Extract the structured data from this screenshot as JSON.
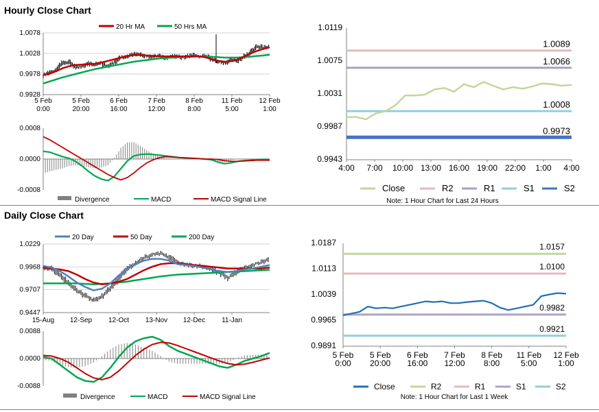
{
  "sections": {
    "hourly_title": "Hourly Close Chart",
    "daily_title": "Daily Close Chart"
  },
  "colors": {
    "price_black": "#000000",
    "ma_short_red": "#c00000",
    "ma_long_green": "#00a651",
    "ma_blue": "#4f81bd",
    "close_green": "#c3d69b",
    "close_blue": "#1f6fb2",
    "r2_pink": "#e6b9b8",
    "r1_purple": "#a5a0c4",
    "s1_teal": "#92cddc",
    "s2_blue": "#4472c4",
    "daily_r2": "#c3d69b",
    "daily_r1": "#e6b9b8",
    "daily_s1": "#b1a0c7",
    "daily_s2": "#92cddc",
    "divergence_gray": "#808080"
  },
  "chart_data": [
    {
      "id": "hourly_price",
      "type": "line",
      "x_ticks": [
        "5 Feb\n0:00",
        "5 Feb\n20:00",
        "6 Feb\n16:00",
        "7 Feb\n12:00",
        "8 Feb\n8:00",
        "11 Feb\n5:00",
        "12 Feb\n1:00"
      ],
      "y_ticks": [
        "1.0078",
        "1.0028",
        "0.9978",
        "0.9928"
      ],
      "ylim": [
        0.9928,
        1.0078
      ],
      "legend": [
        "20 Hr MA",
        "50 Hrs MA"
      ],
      "series": [
        {
          "name": "Price",
          "values": [
            0.9975,
            0.9982,
            0.9988,
            1.0005,
            1.0008,
            0.9994,
            0.9996,
            1.0003,
            1.0001,
            1.0004,
            0.9998,
            1.0006,
            1.0019,
            1.002,
            1.0026,
            1.0024,
            1.0022,
            1.0019,
            1.0023,
            1.0016,
            1.0022,
            1.002,
            1.0018,
            1.0024,
            1.0021,
            1.0023,
            1.0014,
            1.0008,
            1.0005,
            1.0012,
            1.001,
            1.002,
            1.003,
            1.0046,
            1.0042,
            1.0045
          ]
        },
        {
          "name": "20 Hr MA",
          "values": [
            0.9976,
            0.9979,
            0.9985,
            0.9992,
            0.9997,
            1.0,
            1.0001,
            1.0002,
            1.0003,
            1.0006,
            1.001,
            1.0014,
            1.0018,
            1.0022,
            1.0024,
            1.0024,
            1.0023,
            1.0022,
            1.0021,
            1.0021,
            1.0021,
            1.0021,
            1.0021,
            1.0021,
            1.0021,
            1.0019,
            1.0015,
            1.001,
            1.0008,
            1.0009,
            1.0013,
            1.002,
            1.0028,
            1.0034,
            1.0039,
            1.0043
          ]
        },
        {
          "name": "50 Hrs MA",
          "values": [
            0.9955,
            0.996,
            0.9965,
            0.997,
            0.9974,
            0.9978,
            0.9982,
            0.9986,
            0.999,
            0.9993,
            0.9996,
            0.9999,
            1.0002,
            1.0005,
            1.0008,
            1.001,
            1.0012,
            1.0014,
            1.0016,
            1.0017,
            1.0018,
            1.0019,
            1.002,
            1.002,
            1.0021,
            1.0021,
            1.002,
            1.0019,
            1.0018,
            1.0018,
            1.0018,
            1.0019,
            1.002,
            1.0022,
            1.0023,
            1.0025
          ]
        }
      ]
    },
    {
      "id": "hourly_macd",
      "type": "line",
      "y_ticks": [
        "0.0008",
        "0.0000",
        "-0.0008"
      ],
      "ylim": [
        -0.0008,
        0.0008
      ],
      "legend": [
        "Divergence",
        "MACD",
        "MACD Signal Line"
      ],
      "series": [
        {
          "name": "MACD",
          "values": [
            0.0002,
            0.00018,
            0.00012,
            6e-05,
            2e-05,
            -6e-05,
            -0.00018,
            -0.00032,
            -0.00044,
            -0.00052,
            -0.00056,
            -0.00045,
            -0.00025,
            -5e-05,
            8e-05,
            0.00012,
            0.00013,
            0.00012,
            0.0001,
            8e-05,
            6e-05,
            4e-05,
            3e-05,
            2e-05,
            1e-05,
            0.0,
            -2e-05,
            -8e-05,
            -0.00012,
            -0.0001,
            -6e-05,
            -4e-05,
            -3e-05,
            -2e-05,
            -1e-05,
            -1e-05
          ]
        },
        {
          "name": "MACD Signal Line",
          "values": [
            0.00058,
            0.0005,
            0.0004,
            0.0003,
            0.0002,
            0.0001,
            0.0,
            -0.0001,
            -0.0002,
            -0.0003,
            -0.0004,
            -0.00048,
            -0.00054,
            -0.00048,
            -0.00036,
            -0.00022,
            -0.0001,
            -2e-05,
            4e-05,
            6e-05,
            5e-05,
            4e-05,
            3e-05,
            2e-05,
            1e-05,
            0.0,
            -0.0,
            -1e-05,
            -4e-05,
            -6e-05,
            -6e-05,
            -5e-05,
            -4e-05,
            -3e-05,
            -3e-05,
            -3e-05
          ]
        }
      ]
    },
    {
      "id": "hourly_close_24h",
      "type": "line",
      "x_ticks": [
        "4:00",
        "7:00",
        "10:00",
        "13:00",
        "16:00",
        "19:00",
        "22:00",
        "1:00",
        "4:00"
      ],
      "y_ticks": [
        "1.0119",
        "1.0075",
        "1.0031",
        "0.9987",
        "0.9943"
      ],
      "ylim": [
        0.9943,
        1.0119
      ],
      "legend": [
        "Close",
        "R2",
        "R1",
        "S1",
        "S2"
      ],
      "levels": [
        {
          "name": "R2",
          "value": 1.0089,
          "label": "1.0089"
        },
        {
          "name": "R1",
          "value": 1.0066,
          "label": "1.0066"
        },
        {
          "name": "S1",
          "value": 1.0008,
          "label": "1.0008"
        },
        {
          "name": "S2",
          "value": 0.9973,
          "label": "0.9973"
        }
      ],
      "series": [
        {
          "name": "Close",
          "values": [
            1.0,
            1.0,
            0.9997,
            1.0005,
            1.0008,
            1.0016,
            1.0029,
            1.0029,
            1.003,
            1.0037,
            1.0039,
            1.0034,
            1.0044,
            1.004,
            1.0047,
            1.0042,
            1.0037,
            1.004,
            1.0038,
            1.0041,
            1.0045,
            1.0044,
            1.0042,
            1.0043
          ]
        }
      ],
      "note": "Note: 1 Hour Chart for Last 24 Hours"
    },
    {
      "id": "daily_price",
      "type": "line",
      "x_ticks": [
        "15-Aug",
        "12-Sep",
        "12-Oct",
        "13-Nov",
        "12-Dec",
        "11-Jan"
      ],
      "y_ticks": [
        "1.0229",
        "0.9968",
        "0.9707",
        "0.9447"
      ],
      "ylim": [
        0.9447,
        1.0229
      ],
      "legend": [
        "20 Day",
        "50 Day",
        "200 Day"
      ],
      "series": [
        {
          "name": "Price",
          "values": [
            0.996,
            0.995,
            0.988,
            0.978,
            0.97,
            0.964,
            0.959,
            0.963,
            0.972,
            0.983,
            0.995,
            1.001,
            1.007,
            1.011,
            1.012,
            1.008,
            1.002,
            0.999,
            0.998,
            0.997,
            0.995,
            0.99,
            0.984,
            0.99,
            0.996,
            0.999,
            1.002,
            1.006
          ]
        },
        {
          "name": "20 Day",
          "values": [
            0.998,
            0.996,
            0.992,
            0.986,
            0.979,
            0.974,
            0.97,
            0.972,
            0.978,
            0.987,
            0.994,
            1.0,
            1.004,
            1.006,
            1.006,
            1.004,
            1.0,
            0.999,
            0.998,
            0.996,
            0.994,
            0.992,
            0.991,
            0.992,
            0.994,
            0.995,
            0.997,
            0.999
          ]
        },
        {
          "name": "50 Day",
          "values": [
            0.996,
            0.995,
            0.994,
            0.992,
            0.988,
            0.983,
            0.979,
            0.977,
            0.978,
            0.98,
            0.983,
            0.988,
            0.993,
            0.997,
            1.0,
            1.001,
            1.001,
            1.0,
            0.999,
            0.998,
            0.997,
            0.996,
            0.995,
            0.995,
            0.995,
            0.995,
            0.995,
            0.996
          ]
        },
        {
          "name": "200 Day",
          "values": [
            0.978,
            0.978,
            0.978,
            0.978,
            0.978,
            0.9775,
            0.977,
            0.9775,
            0.978,
            0.979,
            0.98,
            0.9815,
            0.983,
            0.9845,
            0.986,
            0.987,
            0.988,
            0.9885,
            0.989,
            0.9895,
            0.99,
            0.9905,
            0.991,
            0.9915,
            0.992,
            0.9925,
            0.993,
            0.9935
          ]
        }
      ]
    },
    {
      "id": "daily_macd",
      "type": "line",
      "y_ticks": [
        "0.0088",
        "0.0000",
        "-0.0088"
      ],
      "ylim": [
        -0.0088,
        0.0088
      ],
      "legend": [
        "Divergence",
        "MACD",
        "MACD Signal Line"
      ],
      "series": [
        {
          "name": "MACD",
          "values": [
            0.0005,
            0.0,
            -0.002,
            -0.004,
            -0.006,
            -0.0072,
            -0.0075,
            -0.006,
            -0.003,
            0.0005,
            0.0035,
            0.0055,
            0.0065,
            0.007,
            0.006,
            0.004,
            0.0025,
            0.0015,
            0.0005,
            -0.0005,
            -0.0015,
            -0.0025,
            -0.003,
            -0.002,
            -0.0008,
            0.0,
            0.0008,
            0.0018
          ]
        },
        {
          "name": "MACD Signal Line",
          "values": [
            0.001,
            0.0008,
            0.0,
            -0.0012,
            -0.003,
            -0.0048,
            -0.0062,
            -0.0068,
            -0.006,
            -0.004,
            -0.0015,
            0.001,
            0.003,
            0.0045,
            0.0052,
            0.005,
            0.0042,
            0.0032,
            0.0022,
            0.0012,
            0.0002,
            -0.0008,
            -0.0016,
            -0.002,
            -0.0018,
            -0.0012,
            -0.0005,
            0.0002
          ]
        }
      ]
    },
    {
      "id": "daily_close_week",
      "type": "line",
      "x_ticks": [
        "5 Feb\n0:00",
        "5 Feb\n20:00",
        "6 Feb\n16:00",
        "7 Feb\n12:00",
        "8 Feb\n8:00",
        "11 Feb\n5:00",
        "12 Feb\n1:00"
      ],
      "y_ticks": [
        "1.0187",
        "1.0113",
        "1.0039",
        "0.9965",
        "0.9891"
      ],
      "ylim": [
        0.9891,
        1.0187
      ],
      "legend": [
        "Close",
        "R2",
        "R1",
        "S1",
        "S2"
      ],
      "levels": [
        {
          "name": "R2",
          "value": 1.0157,
          "label": "1.0157"
        },
        {
          "name": "R1",
          "value": 1.01,
          "label": "1.0100"
        },
        {
          "name": "S1",
          "value": 0.9982,
          "label": "0.9982"
        },
        {
          "name": "S2",
          "value": 0.9921,
          "label": "0.9921"
        }
      ],
      "series": [
        {
          "name": "Close",
          "values": [
            0.998,
            0.9985,
            0.999,
            1.0005,
            1.0,
            1.0002,
            1.0,
            1.0005,
            1.001,
            1.0015,
            1.002,
            1.0018,
            1.002,
            1.0015,
            1.0015,
            1.0018,
            1.002,
            1.0022,
            1.0015,
            1.0002,
            0.9995,
            1.0,
            1.0005,
            1.001,
            1.0035,
            1.004,
            1.0044,
            1.0042
          ]
        }
      ],
      "note": "Note: 1 Hour Chart for Last 1 Week"
    }
  ]
}
